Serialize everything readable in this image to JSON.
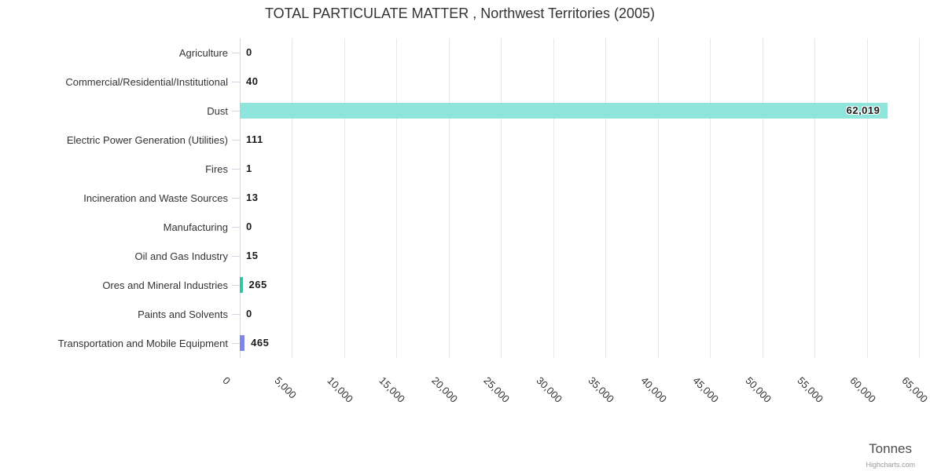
{
  "title": "TOTAL PARTICULATE MATTER , Northwest Territories (2005)",
  "axis_title": "Tonnes",
  "credit": "Highcharts.com",
  "chart_data": {
    "type": "bar",
    "orientation": "horizontal",
    "title": "TOTAL PARTICULATE MATTER , Northwest Territories (2005)",
    "categories": [
      "Agriculture",
      "Commercial/Residential/Institutional",
      "Dust",
      "Electric Power Generation (Utilities)",
      "Fires",
      "Incineration and Waste Sources",
      "Manufacturing",
      "Oil and Gas Industry",
      "Ores and Mineral Industries",
      "Paints and Solvents",
      "Transportation and Mobile Equipment"
    ],
    "values": [
      0,
      40,
      62019,
      111,
      1,
      13,
      0,
      15,
      265,
      0,
      465
    ],
    "data_labels": [
      "0",
      "40",
      "62,019",
      "111",
      "1",
      "13",
      "0",
      "15",
      "265",
      "0",
      "465"
    ],
    "xlabel": "Tonnes",
    "xlim": [
      0,
      65000
    ],
    "tick_interval": 5000,
    "tick_labels": [
      "0",
      "5,000",
      "10,000",
      "15,000",
      "20,000",
      "25,000",
      "30,000",
      "35,000",
      "40,000",
      "45,000",
      "50,000",
      "55,000",
      "60,000",
      "65,000"
    ],
    "grid": true,
    "legend": false,
    "bar_colors": {
      "2": "#8fe5db",
      "8": "#35c2a0",
      "10": "#8085e9"
    },
    "colors": {
      "grid": "#e6e6e6",
      "axis_line": "#ccd6eb",
      "category_label": "#333333",
      "title": "#333333",
      "data_label": "#1a1a1a",
      "axis_title": "#4d4d4d",
      "credit": "#999999"
    }
  }
}
